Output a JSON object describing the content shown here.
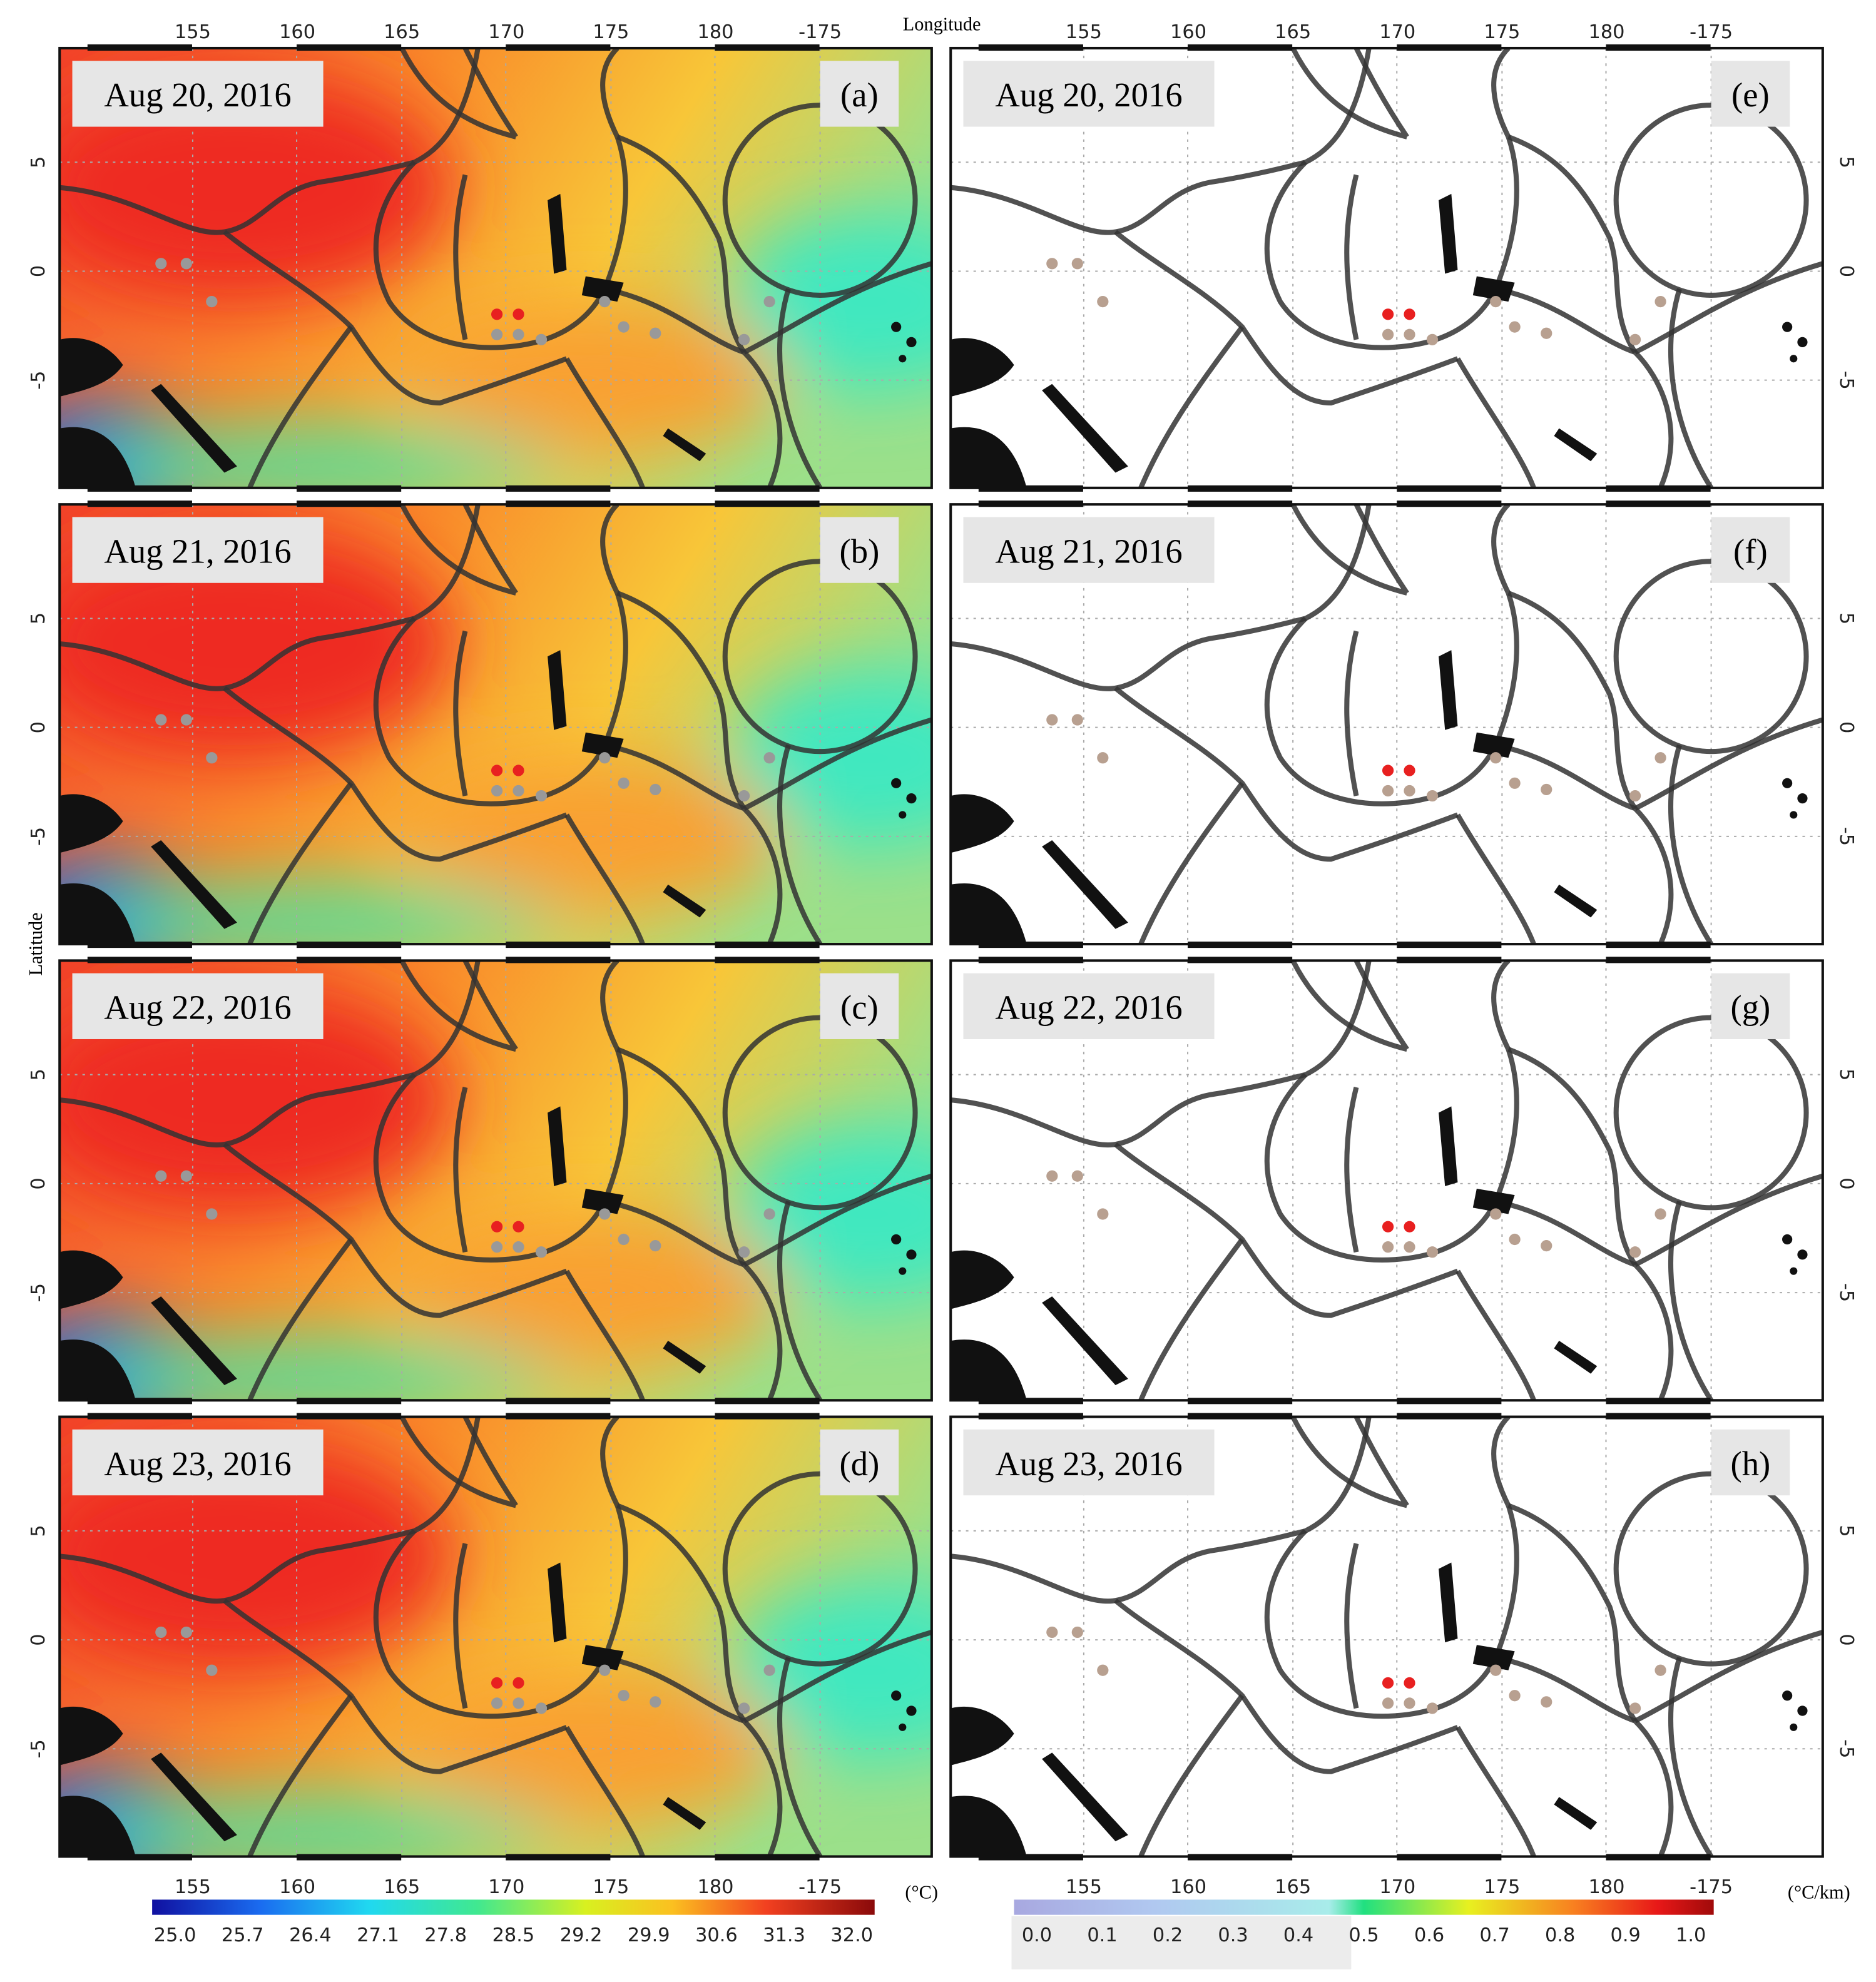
{
  "x_label": "Longitude",
  "y_label": "Latitude",
  "lon_ticks": [
    155,
    160,
    165,
    170,
    175,
    180,
    -175
  ],
  "lat_ticks": [
    5,
    0,
    -5
  ],
  "panels": [
    {
      "date": "Aug 20, 2016",
      "letter": "(a)"
    },
    {
      "date": "Aug 21, 2016",
      "letter": "(b)"
    },
    {
      "date": "Aug 22, 2016",
      "letter": "(c)"
    },
    {
      "date": "Aug 23, 2016",
      "letter": "(d)"
    },
    {
      "date": "Aug 20, 2016",
      "letter": "(e)"
    },
    {
      "date": "Aug 21, 2016",
      "letter": "(f)"
    },
    {
      "date": "Aug 22, 2016",
      "letter": "(g)"
    },
    {
      "date": "Aug 23, 2016",
      "letter": "(h)"
    }
  ],
  "sst_colorbar": {
    "unit": "(°C)",
    "labels": [
      "25.0",
      "25.7",
      "26.4",
      "27.1",
      "27.8",
      "28.5",
      "29.2",
      "29.9",
      "30.6",
      "31.3",
      "32.0"
    ]
  },
  "gradient_colorbar": {
    "unit": "(°C/km)",
    "labels": [
      "0.0",
      "0.1",
      "0.2",
      "0.3",
      "0.4",
      "0.5",
      "0.6",
      "0.7",
      "0.8",
      "0.9",
      "1.0"
    ]
  }
}
